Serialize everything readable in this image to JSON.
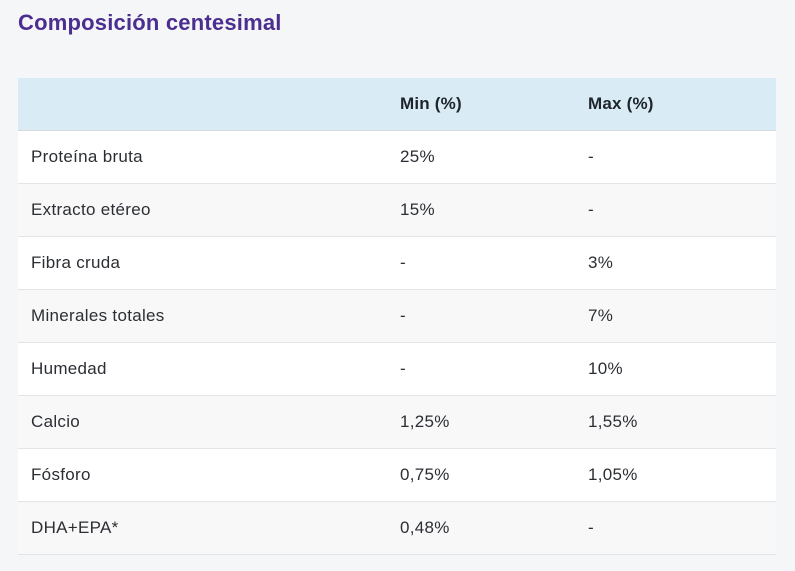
{
  "page": {
    "title": "Composición centesimal",
    "background_color": "#f5f6f7",
    "title_color": "#4b2e90"
  },
  "table": {
    "header": {
      "label": "",
      "min": "Min (%)",
      "max": "Max (%)",
      "background_color": "#d9ecf5",
      "text_color": "#1f232b"
    },
    "rows": [
      {
        "name": "Proteína bruta",
        "min": "25%",
        "max": "-"
      },
      {
        "name": "Extracto etéreo",
        "min": "15%",
        "max": "-"
      },
      {
        "name": "Fibra cruda",
        "min": "-",
        "max": "3%"
      },
      {
        "name": "Minerales totales",
        "min": "-",
        "max": "7%"
      },
      {
        "name": "Humedad",
        "min": "-",
        "max": "10%"
      },
      {
        "name": "Calcio",
        "min": "1,25%",
        "max": "1,55%"
      },
      {
        "name": "Fósforo",
        "min": "0,75%",
        "max": "1,05%"
      },
      {
        "name": "DHA+EPA*",
        "min": "0,48%",
        "max": "-"
      }
    ],
    "row_alt_color": "#f8f8f9",
    "separator_color": "#e3e4e6"
  }
}
